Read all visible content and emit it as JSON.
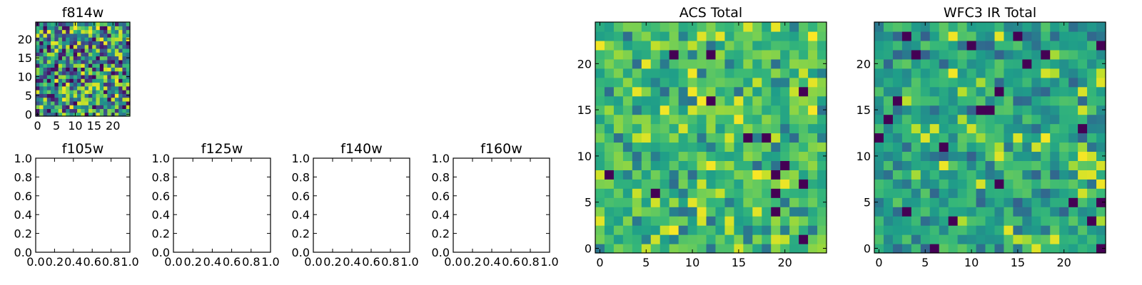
{
  "chart_data": [
    {
      "type": "heatmap",
      "title": "f814w",
      "xlabel": "",
      "ylabel": "",
      "xlim": [
        -0.5,
        24.5
      ],
      "ylim": [
        -0.5,
        24.5
      ],
      "xticks": [
        0,
        5,
        10,
        15,
        20
      ],
      "yticks": [
        0,
        5,
        10,
        15,
        20
      ],
      "grid": false,
      "colormap": "viridis",
      "random_seed": 814,
      "value_distribution": "random noise, roughly 0 to 1"
    },
    {
      "type": "heatmap",
      "title": "f105w",
      "xlim": [
        0.0,
        1.0
      ],
      "ylim": [
        0.0,
        1.0
      ],
      "xticks": [
        "0.0",
        "0.2",
        "0.4",
        "0.6",
        "0.8",
        "1.0"
      ],
      "yticks": [
        "0.0",
        "0.2",
        "0.4",
        "0.6",
        "0.8",
        "1.0"
      ],
      "grid": false,
      "empty": true
    },
    {
      "type": "heatmap",
      "title": "f125w",
      "xlim": [
        0.0,
        1.0
      ],
      "ylim": [
        0.0,
        1.0
      ],
      "xticks": [
        "0.0",
        "0.2",
        "0.4",
        "0.6",
        "0.8",
        "1.0"
      ],
      "yticks": [
        "0.0",
        "0.2",
        "0.4",
        "0.6",
        "0.8",
        "1.0"
      ],
      "grid": false,
      "empty": true
    },
    {
      "type": "heatmap",
      "title": "f140w",
      "xlim": [
        0.0,
        1.0
      ],
      "ylim": [
        0.0,
        1.0
      ],
      "xticks": [
        "0.0",
        "0.2",
        "0.4",
        "0.6",
        "0.8",
        "1.0"
      ],
      "yticks": [
        "0.0",
        "0.2",
        "0.4",
        "0.6",
        "0.8",
        "1.0"
      ],
      "grid": false,
      "empty": true
    },
    {
      "type": "heatmap",
      "title": "f160w",
      "xlim": [
        0.0,
        1.0
      ],
      "ylim": [
        0.0,
        1.0
      ],
      "xticks": [
        "0.0",
        "0.2",
        "0.4",
        "0.6",
        "0.8",
        "1.0"
      ],
      "yticks": [
        "0.0",
        "0.2",
        "0.4",
        "0.6",
        "0.8",
        "1.0"
      ],
      "grid": false,
      "empty": true
    },
    {
      "type": "heatmap",
      "title": "ACS Total",
      "xlim": [
        -0.5,
        24.5
      ],
      "ylim": [
        -0.5,
        24.5
      ],
      "xticks": [
        0,
        5,
        10,
        15,
        20
      ],
      "yticks": [
        0,
        5,
        10,
        15,
        20
      ],
      "grid": false,
      "colormap": "viridis",
      "random_seed": 2207,
      "value_distribution": "mostly mid-high values (green/yellow) with sparse dark cells"
    },
    {
      "type": "heatmap",
      "title": "WFC3 IR Total",
      "xlim": [
        -0.5,
        24.5
      ],
      "ylim": [
        -0.5,
        24.5
      ],
      "xticks": [
        0,
        5,
        10,
        15,
        20
      ],
      "yticks": [
        0,
        5,
        10,
        15,
        20
      ],
      "grid": false,
      "colormap": "viridis",
      "random_seed": 3311,
      "value_distribution": "mostly mid values (teal/green) with sparse dark and bright cells"
    }
  ]
}
